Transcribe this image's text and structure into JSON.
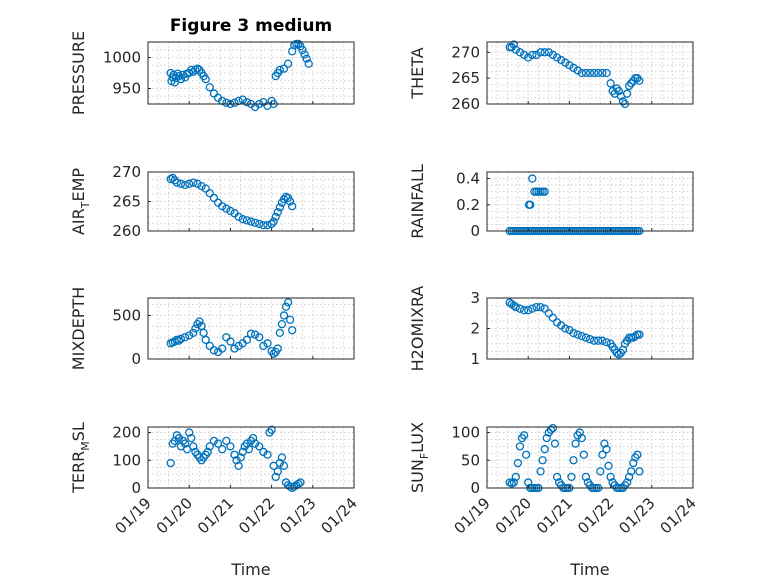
{
  "figure": {
    "title": "Figure 3 medium",
    "marker_color": "#0072BD"
  },
  "chart_data": [
    {
      "type": "scatter",
      "ylabel": "PRESSURE",
      "ylim": [
        925,
        1025
      ],
      "yticks": [
        950,
        1000
      ],
      "yticklabels": [
        "950",
        "1000"
      ],
      "x": [
        0.55,
        0.57,
        0.6,
        0.62,
        0.65,
        0.68,
        0.72,
        0.75,
        0.8,
        0.85,
        0.9,
        0.95,
        1.0,
        1.05,
        1.1,
        1.15,
        1.2,
        1.25,
        1.3,
        1.35,
        1.4,
        1.5,
        1.6,
        1.7,
        1.8,
        1.9,
        2.0,
        2.1,
        2.2,
        2.3,
        2.4,
        2.5,
        2.6,
        2.7,
        2.8,
        2.9,
        3.0,
        3.05,
        3.1,
        3.15,
        3.2,
        3.3,
        3.4,
        3.5,
        3.55,
        3.6,
        3.65,
        3.7,
        3.75,
        3.8,
        3.85,
        3.9
      ],
      "y": [
        975,
        962,
        968,
        972,
        960,
        967,
        974,
        970,
        965,
        972,
        968,
        974,
        975,
        980,
        977,
        980,
        982,
        980,
        975,
        970,
        965,
        952,
        942,
        935,
        930,
        927,
        925,
        927,
        930,
        932,
        928,
        925,
        920,
        925,
        928,
        922,
        930,
        925,
        970,
        975,
        980,
        982,
        990,
        1010,
        1020,
        1022,
        1022,
        1018,
        1012,
        1005,
        998,
        990
      ]
    },
    {
      "type": "scatter",
      "ylabel": "THETA",
      "ylim": [
        260,
        272
      ],
      "yticks": [
        260,
        265,
        270
      ],
      "yticklabels": [
        "260",
        "265",
        "270"
      ],
      "x": [
        0.55,
        0.6,
        0.65,
        0.7,
        0.8,
        0.9,
        1.0,
        1.1,
        1.2,
        1.3,
        1.4,
        1.5,
        1.6,
        1.7,
        1.8,
        1.9,
        2.0,
        2.1,
        2.2,
        2.3,
        2.4,
        2.5,
        2.6,
        2.7,
        2.8,
        2.9,
        3.0,
        3.05,
        3.1,
        3.15,
        3.2,
        3.25,
        3.3,
        3.35,
        3.4,
        3.45,
        3.5,
        3.55,
        3.6,
        3.65,
        3.7
      ],
      "y": [
        271,
        271,
        271.5,
        270.5,
        270,
        269.5,
        269,
        269.5,
        269.5,
        270,
        270,
        270,
        269.5,
        269,
        268.5,
        268,
        267.5,
        267,
        266.5,
        266,
        266,
        266,
        266,
        266,
        266,
        266,
        264,
        262.5,
        262,
        263,
        262.5,
        261.5,
        260.5,
        260,
        262,
        263.5,
        264,
        264.5,
        265,
        265,
        264.5
      ]
    },
    {
      "type": "scatter",
      "ylabel": "AIR_TEMP",
      "ylim": [
        260,
        270
      ],
      "yticks": [
        260,
        265,
        270
      ],
      "yticklabels": [
        "260",
        "265",
        "270"
      ],
      "x": [
        0.55,
        0.6,
        0.65,
        0.7,
        0.8,
        0.9,
        1.0,
        1.1,
        1.2,
        1.3,
        1.4,
        1.5,
        1.6,
        1.7,
        1.8,
        1.9,
        2.0,
        2.1,
        2.2,
        2.3,
        2.4,
        2.5,
        2.6,
        2.7,
        2.8,
        2.9,
        3.0,
        3.05,
        3.1,
        3.15,
        3.2,
        3.25,
        3.3,
        3.35,
        3.4,
        3.45,
        3.5
      ],
      "y": [
        268.8,
        269,
        268.6,
        268.2,
        268,
        267.8,
        268,
        268.2,
        268,
        267.6,
        267.2,
        266.4,
        265.6,
        264.8,
        264.2,
        263.8,
        263.4,
        263,
        262.4,
        262,
        261.8,
        261.6,
        261.4,
        261.2,
        261,
        261,
        261.2,
        261.6,
        262.4,
        263.2,
        264,
        264.8,
        265.4,
        265.8,
        265.6,
        265,
        264.2
      ]
    },
    {
      "type": "scatter",
      "ylabel": "RAINFALL",
      "ylim": [
        0,
        0.45
      ],
      "yticks": [
        0,
        0.2,
        0.4
      ],
      "yticklabels": [
        "0",
        "0.2",
        "0.4"
      ],
      "x": [
        0.55,
        0.6,
        0.65,
        0.7,
        0.75,
        0.8,
        0.85,
        0.9,
        0.95,
        1.0,
        1.05,
        1.1,
        1.15,
        1.2,
        1.25,
        1.3,
        1.35,
        1.4,
        1.45,
        1.5,
        1.55,
        1.6,
        1.65,
        1.7,
        1.75,
        1.8,
        1.85,
        1.9,
        1.95,
        2.0,
        2.05,
        2.1,
        2.15,
        2.2,
        2.25,
        2.3,
        2.35,
        2.4,
        2.45,
        2.5,
        2.55,
        2.6,
        2.65,
        2.7,
        2.75,
        2.8,
        2.85,
        2.9,
        2.95,
        3.0,
        3.05,
        3.1,
        3.15,
        3.2,
        3.25,
        3.3,
        3.35,
        3.4,
        3.45,
        3.5,
        3.55,
        3.6,
        3.65,
        3.7,
        1.02,
        1.05,
        1.1,
        1.15,
        1.2,
        1.25,
        1.3,
        1.35,
        1.4
      ],
      "y": [
        0,
        0,
        0,
        0,
        0,
        0,
        0,
        0,
        0,
        0,
        0,
        0,
        0,
        0,
        0,
        0,
        0,
        0,
        0,
        0,
        0,
        0,
        0,
        0,
        0,
        0,
        0,
        0,
        0,
        0,
        0,
        0,
        0,
        0,
        0,
        0,
        0,
        0,
        0,
        0,
        0,
        0,
        0,
        0,
        0,
        0,
        0,
        0,
        0,
        0,
        0,
        0,
        0,
        0,
        0,
        0,
        0,
        0,
        0,
        0,
        0,
        0,
        0,
        0,
        0.2,
        0.2,
        0.4,
        0.3,
        0.3,
        0.3,
        0.3,
        0.3,
        0.3
      ]
    },
    {
      "type": "scatter",
      "ylabel": "MIXDEPTH",
      "ylim": [
        0,
        700
      ],
      "yticks": [
        0,
        500
      ],
      "yticklabels": [
        "0",
        "500"
      ],
      "x": [
        0.55,
        0.6,
        0.65,
        0.7,
        0.75,
        0.8,
        0.9,
        1.0,
        1.1,
        1.15,
        1.2,
        1.25,
        1.3,
        1.35,
        1.4,
        1.5,
        1.6,
        1.7,
        1.8,
        1.9,
        2.0,
        2.1,
        2.2,
        2.3,
        2.4,
        2.5,
        2.6,
        2.7,
        2.8,
        2.9,
        3.0,
        3.05,
        3.1,
        3.15,
        3.2,
        3.25,
        3.3,
        3.35,
        3.4,
        3.45,
        3.5
      ],
      "y": [
        180,
        190,
        200,
        220,
        210,
        230,
        250,
        270,
        300,
        350,
        400,
        430,
        380,
        300,
        220,
        150,
        100,
        80,
        120,
        250,
        200,
        120,
        150,
        180,
        220,
        290,
        280,
        250,
        150,
        180,
        90,
        60,
        80,
        120,
        300,
        400,
        500,
        600,
        650,
        450,
        330
      ]
    },
    {
      "type": "scatter",
      "ylabel": "H2OMIXRA",
      "ylim": [
        1,
        3
      ],
      "yticks": [
        1,
        2,
        3
      ],
      "yticklabels": [
        "1",
        "2",
        "3"
      ],
      "x": [
        0.55,
        0.6,
        0.65,
        0.7,
        0.8,
        0.9,
        1.0,
        1.1,
        1.2,
        1.3,
        1.4,
        1.5,
        1.6,
        1.7,
        1.8,
        1.9,
        2.0,
        2.1,
        2.2,
        2.3,
        2.4,
        2.5,
        2.6,
        2.7,
        2.8,
        2.9,
        3.0,
        3.05,
        3.1,
        3.15,
        3.2,
        3.25,
        3.3,
        3.35,
        3.4,
        3.45,
        3.5,
        3.55,
        3.6,
        3.65,
        3.7
      ],
      "y": [
        2.85,
        2.8,
        2.75,
        2.7,
        2.65,
        2.6,
        2.6,
        2.65,
        2.7,
        2.7,
        2.65,
        2.5,
        2.35,
        2.2,
        2.1,
        2.0,
        1.95,
        1.85,
        1.8,
        1.75,
        1.7,
        1.65,
        1.6,
        1.6,
        1.6,
        1.55,
        1.5,
        1.4,
        1.3,
        1.2,
        1.15,
        1.2,
        1.3,
        1.5,
        1.6,
        1.7,
        1.7,
        1.7,
        1.75,
        1.8,
        1.8
      ]
    },
    {
      "type": "scatter",
      "ylabel": "TERR_MSL",
      "ylim": [
        0,
        220
      ],
      "yticks": [
        0,
        100,
        200
      ],
      "yticklabels": [
        "0",
        "100",
        "200"
      ],
      "x": [
        0.55,
        0.6,
        0.65,
        0.7,
        0.75,
        0.8,
        0.85,
        0.9,
        0.95,
        1.0,
        1.05,
        1.1,
        1.15,
        1.2,
        1.25,
        1.3,
        1.35,
        1.4,
        1.45,
        1.5,
        1.6,
        1.7,
        1.8,
        1.9,
        2.0,
        2.1,
        2.15,
        2.2,
        2.25,
        2.3,
        2.35,
        2.4,
        2.45,
        2.5,
        2.55,
        2.6,
        2.7,
        2.8,
        2.9,
        2.95,
        3.0,
        3.05,
        3.1,
        3.15,
        3.2,
        3.25,
        3.3,
        3.35,
        3.4,
        3.45,
        3.5,
        3.55,
        3.6,
        3.65,
        3.7
      ],
      "y": [
        90,
        160,
        170,
        190,
        180,
        150,
        170,
        160,
        140,
        200,
        180,
        150,
        130,
        120,
        110,
        100,
        110,
        120,
        130,
        150,
        170,
        160,
        140,
        170,
        150,
        120,
        100,
        80,
        110,
        130,
        150,
        160,
        140,
        170,
        180,
        160,
        150,
        130,
        120,
        200,
        210,
        80,
        40,
        60,
        90,
        110,
        80,
        20,
        10,
        5,
        0,
        5,
        10,
        15,
        20
      ]
    },
    {
      "type": "scatter",
      "ylabel": "SUN_FLUX",
      "ylim": [
        0,
        110
      ],
      "yticks": [
        0,
        50,
        100
      ],
      "yticklabels": [
        "0",
        "50",
        "100"
      ],
      "x": [
        0.55,
        0.6,
        0.65,
        0.7,
        0.75,
        0.8,
        0.85,
        0.9,
        0.95,
        1.0,
        1.05,
        1.1,
        1.15,
        1.2,
        1.25,
        1.3,
        1.35,
        1.4,
        1.45,
        1.5,
        1.55,
        1.6,
        1.65,
        1.7,
        1.75,
        1.8,
        1.85,
        1.9,
        1.95,
        2.0,
        2.05,
        2.1,
        2.15,
        2.2,
        2.25,
        2.3,
        2.35,
        2.4,
        2.45,
        2.5,
        2.55,
        2.6,
        2.65,
        2.7,
        2.75,
        2.8,
        2.85,
        2.9,
        2.95,
        3.0,
        3.05,
        3.1,
        3.15,
        3.2,
        3.25,
        3.3,
        3.35,
        3.4,
        3.45,
        3.5,
        3.55,
        3.6,
        3.65,
        3.7
      ],
      "y": [
        10,
        8,
        10,
        20,
        45,
        75,
        90,
        95,
        60,
        10,
        0,
        0,
        0,
        0,
        0,
        30,
        50,
        70,
        90,
        100,
        105,
        108,
        80,
        20,
        10,
        5,
        0,
        0,
        0,
        0,
        20,
        50,
        80,
        95,
        100,
        90,
        60,
        20,
        10,
        5,
        0,
        0,
        0,
        0,
        30,
        60,
        80,
        70,
        40,
        20,
        10,
        5,
        0,
        0,
        0,
        0,
        5,
        10,
        20,
        30,
        45,
        55,
        60,
        30
      ]
    }
  ],
  "x_axis": {
    "label": "Time",
    "range": [
      0,
      5
    ],
    "ticks": [
      0,
      1,
      2,
      3,
      4,
      5
    ],
    "ticklabels": [
      "01/19",
      "01/20",
      "01/21",
      "01/22",
      "01/23",
      "01/24"
    ]
  }
}
